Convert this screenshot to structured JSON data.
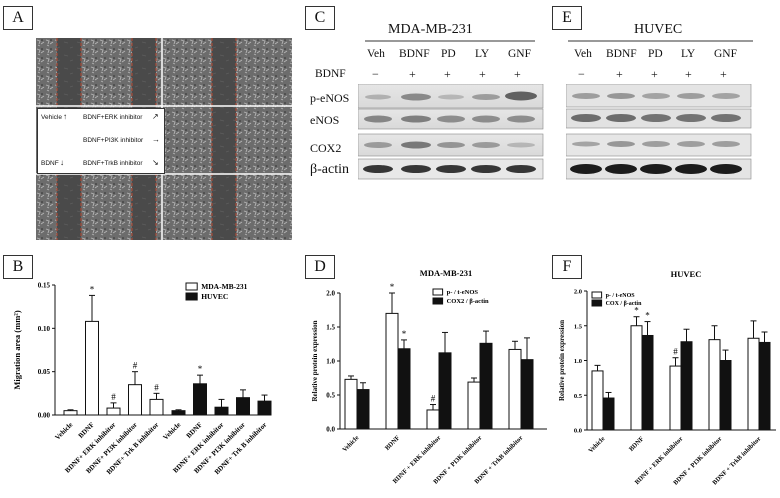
{
  "panels": {
    "A": "A",
    "B": "B",
    "C": "C",
    "D": "D",
    "E": "E",
    "F": "F"
  },
  "panelA": {
    "legend": {
      "vehicle": "Vehicle",
      "bdnf": "BDNF",
      "erk": "BDNF+ERK inhibitor",
      "pi3k": "BDNF+PI3K inhibitor",
      "trkb": "BDNF+TrkB inhibitor"
    }
  },
  "panelC": {
    "title": "MDA-MB-231",
    "lanes": [
      "Veh",
      "BDNF",
      "PD",
      "LY",
      "GNF"
    ],
    "bdnf_label": "BDNF",
    "treatment": [
      "−",
      "+",
      "+",
      "+",
      "+"
    ],
    "rows": [
      "p-eNOS",
      "eNOS",
      "COX2",
      "β-actin"
    ]
  },
  "panelE": {
    "title": "HUVEC",
    "lanes": [
      "Veh",
      "BDNF",
      "PD",
      "LY",
      "GNF"
    ],
    "treatment": [
      "−",
      "+",
      "+",
      "+",
      "+"
    ]
  },
  "chart_data": [
    {
      "id": "B",
      "type": "bar",
      "ylabel": "Migration area (mm²)",
      "ylim": [
        0,
        0.15
      ],
      "yticks": [
        "0.00",
        "0.05",
        "0.10",
        "0.15"
      ],
      "categories": [
        "Vehicle",
        "BDNF",
        "BDNF+ ERK inhibitor",
        "BDNF+ PI3K inhibitor",
        "BDNF+ Trk B inhibitor"
      ],
      "series": [
        {
          "name": "MDA-MB-231",
          "color": "#ffffff",
          "values": [
            0.005,
            0.108,
            0.008,
            0.035,
            0.018
          ],
          "errors": [
            0.001,
            0.03,
            0.006,
            0.015,
            0.007
          ],
          "marks": [
            "",
            "*",
            "#",
            "#",
            "#"
          ]
        },
        {
          "name": "HUVEC",
          "color": "#111111",
          "values": [
            0.005,
            0.036,
            0.009,
            0.02,
            0.016
          ],
          "errors": [
            0.001,
            0.01,
            0.009,
            0.009,
            0.007
          ],
          "marks": [
            "",
            "*",
            "",
            "",
            ""
          ]
        }
      ]
    },
    {
      "id": "D",
      "type": "bar",
      "title": "MDA-MB-231",
      "ylabel": "Relative protein expression",
      "ylim": [
        0,
        2.0
      ],
      "yticks": [
        "0.0",
        "0.5",
        "1.0",
        "1.5",
        "2.0"
      ],
      "categories": [
        "Vehicle",
        "BDNF",
        "BDNF + ERK inhibitor",
        "BDNF + PI3K inhibitor",
        "BDNF + TrkB inhibitor"
      ],
      "series": [
        {
          "name": "p- / t-eNOS",
          "color": "#ffffff",
          "values": [
            0.73,
            1.7,
            0.28,
            0.69,
            1.17
          ],
          "errors": [
            0.05,
            0.3,
            0.08,
            0.06,
            0.12
          ],
          "marks": [
            "",
            "*",
            "#",
            "",
            ""
          ]
        },
        {
          "name": "COX2 / β-actin",
          "color": "#111111",
          "values": [
            0.58,
            1.18,
            1.12,
            1.26,
            1.02
          ],
          "errors": [
            0.1,
            0.13,
            0.3,
            0.18,
            0.32
          ],
          "marks": [
            "",
            "*",
            "",
            "",
            ""
          ]
        }
      ]
    },
    {
      "id": "F",
      "type": "bar",
      "title": "HUVEC",
      "ylabel": "Relative protein expression",
      "ylim": [
        0,
        2.0
      ],
      "yticks": [
        "0.0",
        "0.5",
        "1.0",
        "1.5",
        "2.0"
      ],
      "categories": [
        "Vehicle",
        "BDNF",
        "BDNF + ERK inhibitor",
        "BDNF + PI3K inhibitor",
        "BDNF + TrkB inhibitor"
      ],
      "series": [
        {
          "name": "p- / t-eNOS",
          "color": "#ffffff",
          "values": [
            0.85,
            1.5,
            0.92,
            1.3,
            1.32
          ],
          "errors": [
            0.08,
            0.13,
            0.12,
            0.2,
            0.25
          ],
          "marks": [
            "",
            "*",
            "#",
            "",
            ""
          ]
        },
        {
          "name": "COX / β-actin",
          "color": "#111111",
          "values": [
            0.46,
            1.36,
            1.27,
            1.0,
            1.26
          ],
          "errors": [
            0.08,
            0.2,
            0.18,
            0.15,
            0.15
          ],
          "marks": [
            "",
            "*",
            "",
            "",
            ""
          ]
        }
      ]
    }
  ]
}
